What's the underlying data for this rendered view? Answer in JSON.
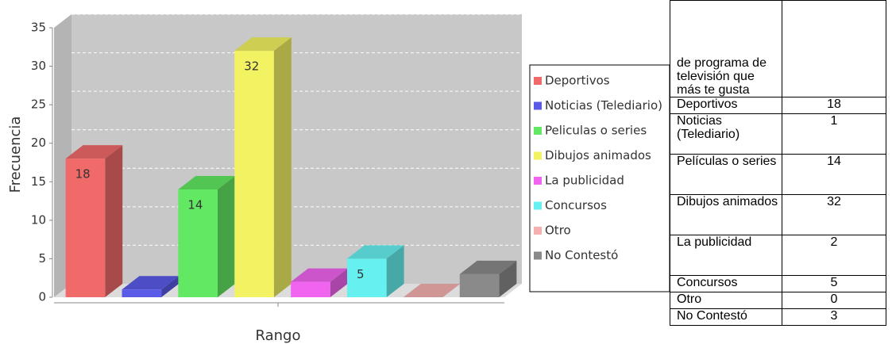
{
  "chart_data": {
    "type": "bar3d",
    "xlabel": "Rango",
    "ylabel": "Frecuencia",
    "categories": [
      "Deportivos",
      "Noticias (Telediario)",
      "Peliculas o series",
      "Dibujos animados",
      "La publicidad",
      "Concursos",
      "Otro",
      "No Contestó"
    ],
    "values": [
      18,
      1,
      14,
      32,
      2,
      5,
      0,
      3
    ],
    "colors": [
      "#f06a6a",
      "#5a5ae8",
      "#62e862",
      "#f2f262",
      "#f064f0",
      "#66f0f0",
      "#f5b0b0",
      "#8a8a8a"
    ],
    "show_value_labels": [
      true,
      false,
      true,
      true,
      false,
      true,
      false,
      false
    ],
    "ylim": [
      0,
      35
    ],
    "yticks": [
      0,
      5,
      10,
      15,
      20,
      25,
      30,
      35
    ],
    "grid": true
  },
  "table": {
    "header": "de programa de televisión que más te gusta",
    "rows": [
      {
        "label": "Deportivos",
        "value": 18
      },
      {
        "label": "Noticias (Telediario)",
        "value": 1
      },
      {
        "label": "Películas o series",
        "value": 14
      },
      {
        "label": "Dibujos animados",
        "value": 32
      },
      {
        "label": "La publicidad",
        "value": 2
      },
      {
        "label": "Concursos",
        "value": 5
      },
      {
        "label": "Otro",
        "value": 0
      },
      {
        "label": "No Contestó",
        "value": 3
      }
    ]
  }
}
